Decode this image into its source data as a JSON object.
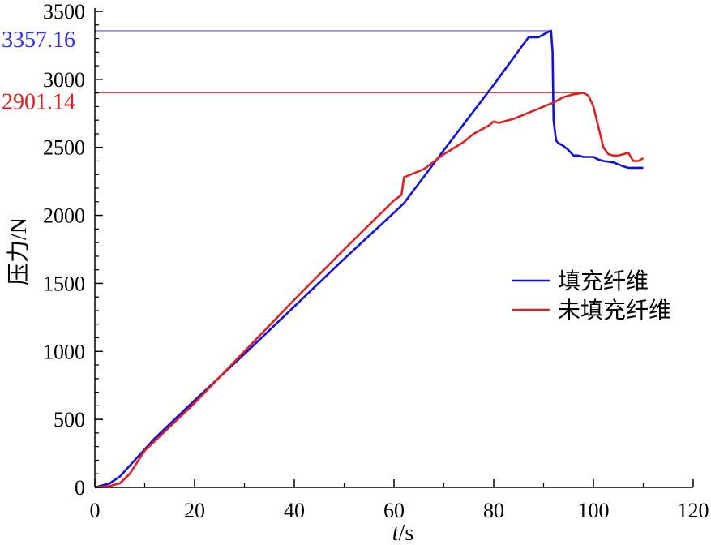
{
  "chart_data": {
    "type": "line",
    "title": "",
    "xlabel": {
      "var": "t",
      "unit": "/s"
    },
    "ylabel": "压力/N",
    "xlim": [
      0,
      120
    ],
    "ylim": [
      0,
      3500
    ],
    "xticks": [
      0,
      20,
      40,
      60,
      80,
      100,
      120
    ],
    "yticks": [
      0,
      500,
      1000,
      1500,
      2000,
      2500,
      3000,
      3500
    ],
    "grid": false,
    "legend": "right",
    "series": [
      {
        "name": "填充纤维",
        "color": "#1010e0",
        "x": [
          0,
          3,
          5,
          8,
          12,
          20,
          30,
          40,
          50,
          60,
          62,
          70,
          80,
          87,
          88,
          89,
          90,
          91,
          91.5,
          91.8,
          92,
          92.5,
          93,
          94,
          95,
          96,
          97,
          98,
          100,
          101,
          102,
          104,
          106,
          107,
          108,
          110
        ],
        "y": [
          0,
          30,
          80,
          200,
          360,
          640,
          980,
          1330,
          1680,
          2020,
          2090,
          2480,
          2960,
          3310,
          3310,
          3310,
          3330,
          3350,
          3357,
          3200,
          2700,
          2550,
          2530,
          2510,
          2480,
          2440,
          2440,
          2430,
          2430,
          2410,
          2400,
          2390,
          2360,
          2350,
          2350,
          2350
        ]
      },
      {
        "name": "未填充纤维",
        "color": "#e02020",
        "x": [
          0,
          3,
          5,
          7,
          10,
          20,
          30,
          40,
          50,
          60,
          61.5,
          62,
          64,
          66,
          70,
          74,
          76,
          78,
          79,
          80,
          81,
          84,
          86,
          88,
          90,
          92,
          94,
          96,
          98,
          99,
          100,
          101,
          102,
          103,
          104,
          105,
          106,
          107,
          108,
          109,
          110
        ],
        "y": [
          0,
          10,
          30,
          100,
          270,
          620,
          1000,
          1380,
          1750,
          2110,
          2150,
          2280,
          2310,
          2340,
          2450,
          2540,
          2600,
          2640,
          2660,
          2690,
          2680,
          2710,
          2740,
          2770,
          2800,
          2830,
          2870,
          2890,
          2901,
          2880,
          2800,
          2650,
          2500,
          2450,
          2440,
          2440,
          2450,
          2460,
          2400,
          2400,
          2420
        ]
      }
    ],
    "reference_lines": [
      {
        "series": "填充纤维",
        "value": 3357.16,
        "label": "3357.16",
        "color": "#3030f0"
      },
      {
        "series": "未填充纤维",
        "value": 2901.14,
        "label": "2901.14",
        "color": "#e02020"
      }
    ]
  }
}
